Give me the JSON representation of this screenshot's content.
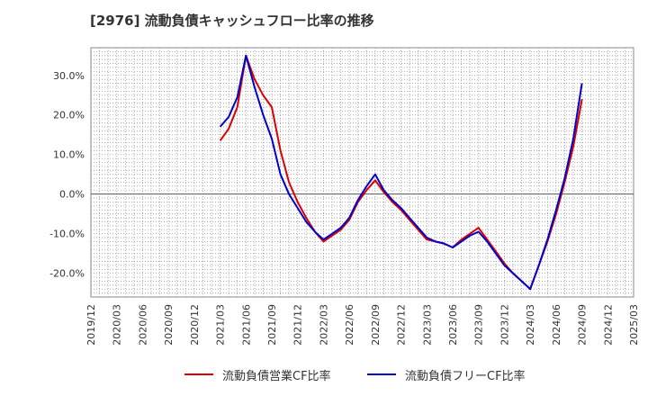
{
  "chart_data": {
    "type": "line",
    "title": "[2976]  流動負債キャッシュフロー比率の推移",
    "xlabel": "",
    "ylabel": "",
    "ylim": [
      -26,
      37
    ],
    "yticks": [
      30,
      20,
      10,
      0,
      -10,
      -20
    ],
    "ytick_labels": [
      "30.0%",
      "20.0%",
      "10.0%",
      "0.0%",
      "-10.0%",
      "-20.0%"
    ],
    "xticks": [
      "2019/12",
      "2020/03",
      "2020/06",
      "2020/09",
      "2020/12",
      "2021/03",
      "2021/06",
      "2021/09",
      "2021/12",
      "2022/03",
      "2022/06",
      "2022/09",
      "2022/12",
      "2023/03",
      "2023/06",
      "2023/09",
      "2023/12",
      "2024/03",
      "2024/06",
      "2024/09",
      "2024/12",
      "2025/03"
    ],
    "grid": true,
    "legend_position": "bottom",
    "series": [
      {
        "name": "流動負債営業CF比率",
        "color": "#dd0000",
        "x": [
          "2021/03",
          "2021/04",
          "2021/05",
          "2021/06",
          "2021/07",
          "2021/08",
          "2021/09",
          "2021/10",
          "2021/11",
          "2021/12",
          "2022/01",
          "2022/02",
          "2022/03",
          "2022/04",
          "2022/05",
          "2022/06",
          "2022/07",
          "2022/08",
          "2022/09",
          "2022/10",
          "2022/11",
          "2022/12",
          "2023/01",
          "2023/02",
          "2023/03",
          "2023/04",
          "2023/05",
          "2023/06",
          "2023/07",
          "2023/08",
          "2023/09",
          "2023/10",
          "2023/11",
          "2023/12",
          "2024/01",
          "2024/02",
          "2024/03",
          "2024/04",
          "2024/05",
          "2024/06",
          "2024/07",
          "2024/08",
          "2024/09"
        ],
        "values": [
          13.5,
          16.5,
          22,
          35,
          29,
          25,
          22,
          11,
          3,
          -2,
          -6,
          -9.5,
          -12,
          -10.5,
          -9,
          -6.5,
          -2,
          1,
          3.5,
          0.5,
          -2,
          -4,
          -6.5,
          -9,
          -11.5,
          -12,
          -12.5,
          -13.5,
          -11.5,
          -10,
          -8.5,
          -11.5,
          -14.5,
          -17.5,
          -20,
          -22,
          -24,
          -18,
          -12,
          -5,
          3,
          12,
          24
        ]
      },
      {
        "name": "流動負債フリーCF比率",
        "color": "#0000cc",
        "x": [
          "2021/03",
          "2021/04",
          "2021/05",
          "2021/06",
          "2021/07",
          "2021/08",
          "2021/09",
          "2021/10",
          "2021/11",
          "2021/12",
          "2022/01",
          "2022/02",
          "2022/03",
          "2022/04",
          "2022/05",
          "2022/06",
          "2022/07",
          "2022/08",
          "2022/09",
          "2022/10",
          "2022/11",
          "2022/12",
          "2023/01",
          "2023/02",
          "2023/03",
          "2023/04",
          "2023/05",
          "2023/06",
          "2023/07",
          "2023/08",
          "2023/09",
          "2023/10",
          "2023/11",
          "2023/12",
          "2024/01",
          "2024/02",
          "2024/03",
          "2024/04",
          "2024/05",
          "2024/06",
          "2024/07",
          "2024/08",
          "2024/09"
        ],
        "values": [
          17,
          19.5,
          24.5,
          35,
          27,
          20,
          14,
          5,
          0,
          -3.5,
          -7,
          -9.5,
          -11.5,
          -10,
          -8.5,
          -6,
          -1.5,
          2,
          5,
          1,
          -1.5,
          -3.5,
          -6,
          -8.5,
          -11,
          -12,
          -12.5,
          -13.5,
          -12,
          -10.5,
          -9.5,
          -12,
          -15,
          -18,
          -20,
          -22,
          -24,
          -18,
          -11.5,
          -4,
          4,
          14,
          28
        ]
      }
    ]
  }
}
